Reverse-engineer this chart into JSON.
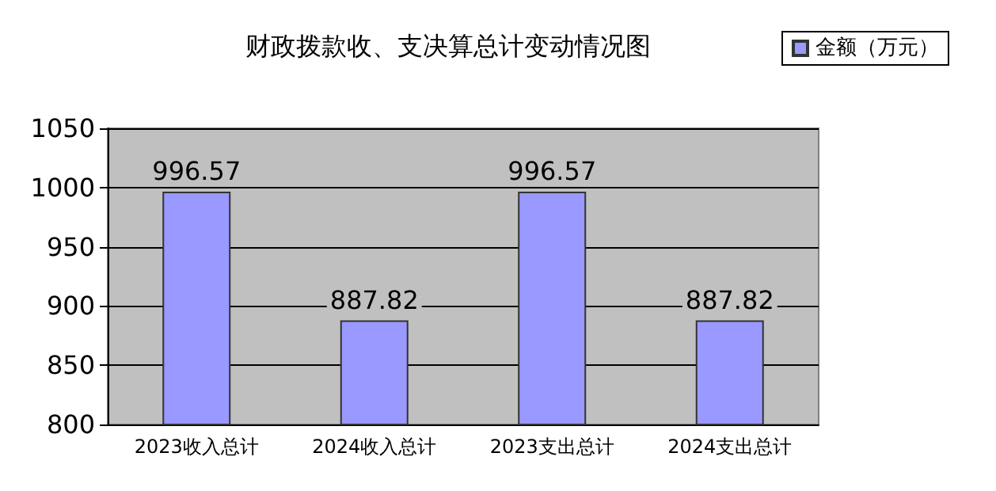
{
  "chart_data": {
    "type": "bar",
    "title": "财政拨款收、支决算总计变动情况图",
    "categories": [
      "2023收入总计",
      "2024收入总计",
      "2023支出总计",
      "2024支出总计"
    ],
    "series": [
      {
        "name": "金额（万元）",
        "color": "#9999ff",
        "values": [
          996.57,
          887.82,
          996.57,
          887.82
        ]
      }
    ],
    "ylim": [
      800,
      1050
    ],
    "yticks": [
      800,
      850,
      900,
      950,
      1000,
      1050
    ],
    "grid": "y",
    "legend": "top right",
    "data_labels": true
  }
}
